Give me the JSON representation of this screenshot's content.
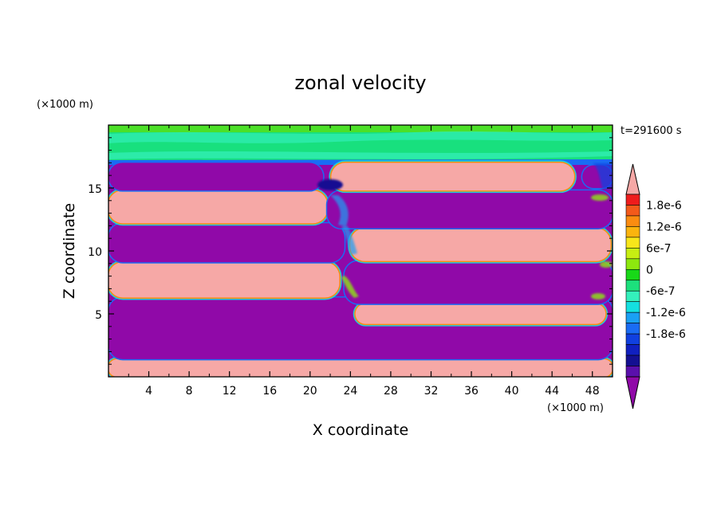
{
  "chart_data": {
    "type": "heatmap",
    "title": "zonal velocity",
    "xlabel": "X coordinate",
    "ylabel": "Z coordinate",
    "x_units": "(×1000 m)",
    "y_units": "(×1000 m)",
    "time_label": "t=291600 s",
    "xlim": [
      0,
      50
    ],
    "ylim": [
      0,
      20
    ],
    "x_ticks": [
      "4",
      "8",
      "12",
      "16",
      "20",
      "24",
      "28",
      "32",
      "36",
      "40",
      "44",
      "48"
    ],
    "y_ticks": [
      "5",
      "10",
      "15"
    ],
    "colorbar": {
      "labels": [
        "1.8e-6",
        "1.2e-6",
        "6e-7",
        "0",
        "-6e-7",
        "-1.2e-6",
        "-1.8e-6"
      ],
      "colors_top_to_bottom": [
        "#f6a8a6",
        "#ee1c1c",
        "#f35a1a",
        "#fb8c10",
        "#fbb40e",
        "#f8e61a",
        "#c7ee12",
        "#8de80e",
        "#18d818",
        "#1ce07c",
        "#34f0bc",
        "#14e0e0",
        "#1aa0f4",
        "#1a6cf4",
        "#1040e0",
        "#1020c0",
        "#141092",
        "#5a10ac",
        "#9009a8"
      ],
      "extend": "both"
    },
    "positive_color": "#f6a8a6",
    "negative_color": "#9009a8",
    "surface_color": "#18e07e",
    "cells": [
      {
        "sign": "positive",
        "x": [
          0,
          50
        ],
        "z": [
          0,
          1.4
        ]
      },
      {
        "sign": "negative",
        "x": [
          0,
          50
        ],
        "z": [
          1.4,
          6.3
        ]
      },
      {
        "sign": "positive",
        "x": [
          0,
          22.9
        ],
        "z": [
          6.3,
          9.1
        ]
      },
      {
        "sign": "negative",
        "x": [
          0,
          23.4
        ],
        "z": [
          9.1,
          12.2
        ]
      },
      {
        "sign": "positive",
        "x": [
          0,
          21.7
        ],
        "z": [
          12.2,
          14.8
        ]
      },
      {
        "sign": "negative",
        "x": [
          0,
          21.3
        ],
        "z": [
          14.8,
          17.0
        ]
      },
      {
        "sign": "positive",
        "x": [
          24.5,
          49.3
        ],
        "z": [
          4.2,
          5.8
        ]
      },
      {
        "sign": "negative",
        "x": [
          23.4,
          50
        ],
        "z": [
          5.8,
          9.2
        ]
      },
      {
        "sign": "positive",
        "x": [
          24.0,
          49.8
        ],
        "z": [
          9.2,
          11.8
        ]
      },
      {
        "sign": "negative",
        "x": [
          21.7,
          50
        ],
        "z": [
          11.8,
          14.8
        ]
      },
      {
        "sign": "positive",
        "x": [
          22.1,
          46.2
        ],
        "z": [
          14.8,
          17.0
        ]
      },
      {
        "sign": "negative",
        "x": [
          47.0,
          50
        ],
        "z": [
          15.0,
          16.8
        ]
      }
    ]
  }
}
